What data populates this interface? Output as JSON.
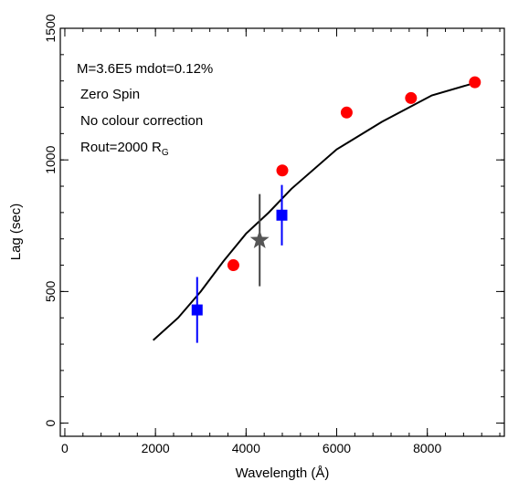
{
  "chart_data": {
    "type": "scatter",
    "xlabel": "Wavelength (Å)",
    "ylabel": "Lag (sec)",
    "xlim": [
      -100,
      9700
    ],
    "ylim": [
      -50,
      1500
    ],
    "xticks": [
      0,
      2000,
      4000,
      6000,
      8000
    ],
    "xtick_labels": [
      "0",
      "2000",
      "4000",
      "6000",
      "8000"
    ],
    "yticks": [
      0,
      500,
      1000,
      1500
    ],
    "ytick_labels": [
      "0",
      "500",
      "1000",
      "1500"
    ],
    "x_minor_step": 400,
    "y_minor_step": 100,
    "grid": false,
    "annotations": [
      {
        "text": "M=3.6E5 mdot=0.12%"
      },
      {
        "text": "Zero Spin"
      },
      {
        "text": "No colour correction"
      },
      {
        "text": "Rout=2000 R",
        "subscript": "G"
      }
    ],
    "series": [
      {
        "marker": "line",
        "color": "#000000",
        "x": [
          1950,
          2500,
          3000,
          3500,
          4000,
          4500,
          5000,
          6000,
          7000,
          8100,
          9100
        ],
        "y": [
          315,
          400,
          500,
          615,
          720,
          800,
          890,
          1040,
          1145,
          1245,
          1295
        ]
      },
      {
        "marker": "circle",
        "color": "#ff0000",
        "x": [
          3720,
          4800,
          6220,
          7640,
          9050
        ],
        "y": [
          600,
          960,
          1180,
          1235,
          1295
        ]
      },
      {
        "marker": "square",
        "color": "#0000ff",
        "x": [
          2920,
          4790
        ],
        "y": [
          430,
          790
        ],
        "yerr": [
          125,
          115
        ]
      },
      {
        "marker": "star",
        "color": "#555555",
        "x": [
          4300
        ],
        "y": [
          695
        ],
        "yerr": [
          175
        ]
      }
    ]
  }
}
